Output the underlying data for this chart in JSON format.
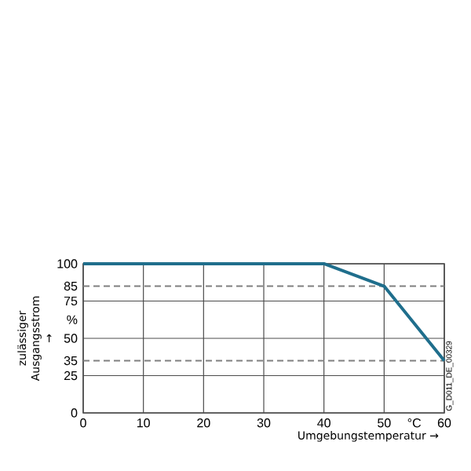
{
  "chart_data": {
    "type": "line",
    "xlabel": "Umgebungstemperatur →",
    "ylabel": "zulässiger Ausgangsstrom →",
    "x": [
      0,
      40,
      50,
      60
    ],
    "series": [
      {
        "color": "#1f6e8c",
        "values": [
          100,
          100,
          85,
          35
        ]
      }
    ],
    "xlim": [
      0,
      60
    ],
    "ylim": [
      0,
      100
    ],
    "xticks": [
      0,
      10,
      20,
      30,
      40,
      50,
      {
        "value": 55,
        "label": "°C"
      },
      60
    ],
    "yticks": [
      0,
      25,
      50,
      {
        "value": 62.5,
        "label": "%"
      },
      75,
      100
    ],
    "grid": true,
    "ref_lines": [
      {
        "axis": "y",
        "value": 85,
        "label": "85",
        "line_style": "dashed",
        "color": "#808080"
      },
      {
        "axis": "y",
        "value": 35,
        "label": "35",
        "line_style": "dashed",
        "color": "#808080"
      }
    ],
    "marker": "none",
    "line_style": "solid",
    "annotations": [
      "G_D011_DE_00329"
    ]
  }
}
